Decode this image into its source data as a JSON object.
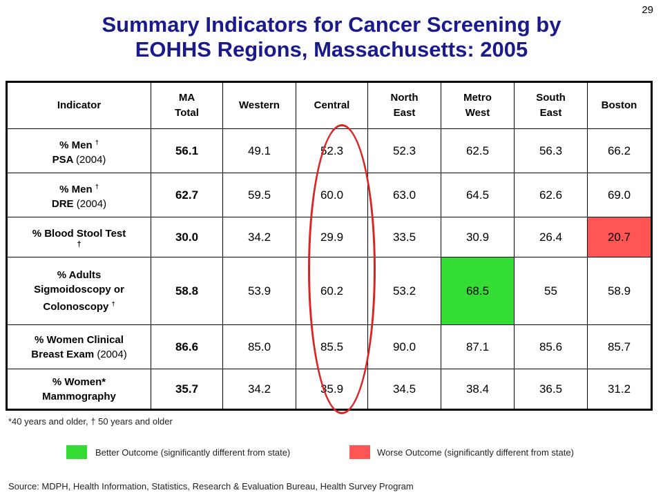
{
  "page_number": "29",
  "title_line1": "Summary Indicators for Cancer Screening by",
  "title_line2": "EOHHS Regions, Massachusetts: 2005",
  "columns": {
    "indicator": "Indicator",
    "ma_line1": "MA",
    "ma_line2": "Total",
    "western": "Western",
    "central": "Central",
    "northeast_line1": "North",
    "northeast_line2": "East",
    "metrowest_line1": "Metro",
    "metrowest_line2": "West",
    "southeast_line1": "South",
    "southeast_line2": "East",
    "boston": "Boston"
  },
  "rows": [
    {
      "label_a": "% Men",
      "label_a_mark": "†",
      "label_b": "PSA",
      "label_b_year": "(2004)",
      "ma_total": "56.1",
      "values": [
        "49.1",
        "52.3",
        "52.3",
        "62.5",
        "56.3",
        "66.2"
      ]
    },
    {
      "label_a": "% Men",
      "label_a_mark": "†",
      "label_b": "DRE",
      "label_b_year": "(2004)",
      "ma_total": "62.7",
      "values": [
        "59.5",
        "60.0",
        "63.0",
        "64.5",
        "62.6",
        "69.0"
      ]
    },
    {
      "label_a": "% Blood Stool Test",
      "label_a_mark": "†",
      "ma_total": "30.0",
      "values": [
        "34.2",
        "29.9",
        "33.5",
        "30.9",
        "26.4",
        "20.7"
      ]
    },
    {
      "label_a": "% Adults",
      "label_b": "Sigmoidoscopy or",
      "label_c": "Colonoscopy",
      "label_c_mark": "†",
      "ma_total": "58.8",
      "values": [
        "53.9",
        "60.2",
        "53.2",
        "68.5",
        "55",
        "58.9"
      ]
    },
    {
      "label_a": "% Women Clinical",
      "label_b": "Breast Exam",
      "label_b_year": "(2004)",
      "ma_total": "86.6",
      "values": [
        "85.0",
        "85.5",
        "90.0",
        "87.1",
        "85.6",
        "85.7"
      ]
    },
    {
      "label_a": "% Women*",
      "label_b": "Mammography",
      "ma_total": "35.7",
      "values": [
        "34.2",
        "35.9",
        "34.5",
        "38.4",
        "36.5",
        "31.2"
      ]
    }
  ],
  "footnote": "*40 years and older, † 50 years and older",
  "legend": {
    "better": "Better Outcome (significantly different from state)",
    "worse": "Worse Outcome (significantly different from state)",
    "better_color": "#33dd33",
    "worse_color": "#ff5555",
    "highlight_color": "#dd2222"
  },
  "source": "Source:  MDPH, Health Information, Statistics, Research & Evaluation Bureau, Health Survey Program"
}
